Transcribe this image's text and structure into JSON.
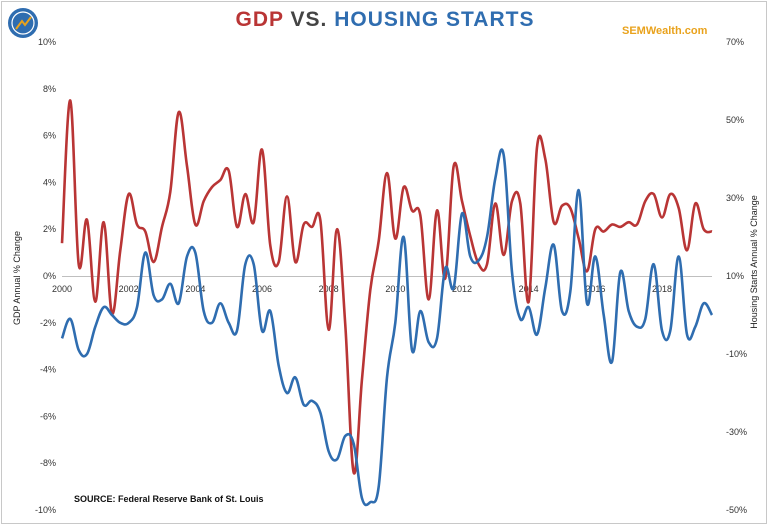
{
  "header": {
    "title_part1": "GDP",
    "title_part2": "VS.",
    "title_part3": "HOUSING STARTS",
    "brand": "SEMWealth.com"
  },
  "colors": {
    "gdp": "#b93535",
    "housing": "#2f6db0",
    "gray": "#444444",
    "brand": "#e9a21c"
  },
  "icons": {
    "logo": "semwealth-logo-icon"
  },
  "source": "SOURCE:  Federal Reserve Bank of St. Louis",
  "chart_data": {
    "type": "line",
    "title": "GDP VS. HOUSING STARTS",
    "xlabel": "",
    "ylabel": "GDP Annual % Change",
    "y2label": "Housing Starts Annual % Change",
    "xlim": [
      2000,
      2019.5
    ],
    "ylim": [
      -10,
      10
    ],
    "y2lim": [
      -50,
      70
    ],
    "x_ticks": [
      "2000",
      "2002",
      "2004",
      "2006",
      "2008",
      "2010",
      "2012",
      "2014",
      "2016",
      "2018"
    ],
    "y_ticks": [
      "10%",
      "8%",
      "6%",
      "4%",
      "2%",
      "0%",
      "-2%",
      "-4%",
      "-6%",
      "-8%",
      "-10%"
    ],
    "y2_ticks": [
      "70%",
      "50%",
      "30%",
      "10%",
      "-10%",
      "-30%",
      "-50%"
    ],
    "grid": false,
    "series": [
      {
        "name": "GDP",
        "axis": "left",
        "points": [
          [
            2000.0,
            1.4
          ],
          [
            2000.25,
            7.5
          ],
          [
            2000.5,
            0.5
          ],
          [
            2000.75,
            2.4
          ],
          [
            2001.0,
            -1.1
          ],
          [
            2001.25,
            2.3
          ],
          [
            2001.5,
            -1.6
          ],
          [
            2001.75,
            1.1
          ],
          [
            2002.0,
            3.5
          ],
          [
            2002.25,
            2.2
          ],
          [
            2002.5,
            1.9
          ],
          [
            2002.75,
            0.6
          ],
          [
            2003.0,
            2.1
          ],
          [
            2003.25,
            3.6
          ],
          [
            2003.5,
            7.0
          ],
          [
            2003.75,
            4.7
          ],
          [
            2004.0,
            2.2
          ],
          [
            2004.25,
            3.2
          ],
          [
            2004.5,
            3.8
          ],
          [
            2004.75,
            4.1
          ],
          [
            2005.0,
            4.5
          ],
          [
            2005.25,
            2.1
          ],
          [
            2005.5,
            3.5
          ],
          [
            2005.75,
            2.3
          ],
          [
            2006.0,
            5.4
          ],
          [
            2006.25,
            1.3
          ],
          [
            2006.5,
            0.6
          ],
          [
            2006.75,
            3.4
          ],
          [
            2007.0,
            0.6
          ],
          [
            2007.25,
            2.2
          ],
          [
            2007.5,
            2.1
          ],
          [
            2007.75,
            2.4
          ],
          [
            2008.0,
            -2.3
          ],
          [
            2008.25,
            2.0
          ],
          [
            2008.5,
            -2.1
          ],
          [
            2008.75,
            -8.4
          ],
          [
            2009.0,
            -4.4
          ],
          [
            2009.25,
            -0.6
          ],
          [
            2009.5,
            1.5
          ],
          [
            2009.75,
            4.4
          ],
          [
            2010.0,
            1.6
          ],
          [
            2010.25,
            3.8
          ],
          [
            2010.5,
            2.8
          ],
          [
            2010.75,
            2.6
          ],
          [
            2011.0,
            -1.0
          ],
          [
            2011.25,
            2.8
          ],
          [
            2011.5,
            -0.1
          ],
          [
            2011.75,
            4.7
          ],
          [
            2012.0,
            3.2
          ],
          [
            2012.25,
            1.7
          ],
          [
            2012.5,
            0.5
          ],
          [
            2012.75,
            0.5
          ],
          [
            2013.0,
            3.1
          ],
          [
            2013.25,
            0.9
          ],
          [
            2013.5,
            3.2
          ],
          [
            2013.75,
            3.1
          ],
          [
            2014.0,
            -1.1
          ],
          [
            2014.25,
            5.5
          ],
          [
            2014.5,
            5.0
          ],
          [
            2014.75,
            2.3
          ],
          [
            2015.0,
            3.0
          ],
          [
            2015.25,
            2.9
          ],
          [
            2015.5,
            1.6
          ],
          [
            2015.75,
            0.2
          ],
          [
            2016.0,
            2.0
          ],
          [
            2016.25,
            1.9
          ],
          [
            2016.5,
            2.2
          ],
          [
            2016.75,
            2.1
          ],
          [
            2017.0,
            2.3
          ],
          [
            2017.25,
            2.2
          ],
          [
            2017.5,
            3.2
          ],
          [
            2017.75,
            3.5
          ],
          [
            2018.0,
            2.5
          ],
          [
            2018.25,
            3.5
          ],
          [
            2018.5,
            2.9
          ],
          [
            2018.75,
            1.1
          ],
          [
            2019.0,
            3.1
          ],
          [
            2019.25,
            2.0
          ],
          [
            2019.5,
            1.9
          ],
          [
            2019.75,
            1.9
          ]
        ]
      },
      {
        "name": "Housing Starts",
        "axis": "right",
        "points": [
          [
            2000.0,
            -6
          ],
          [
            2000.25,
            -1
          ],
          [
            2000.5,
            -9
          ],
          [
            2000.75,
            -10
          ],
          [
            2001.0,
            -3
          ],
          [
            2001.25,
            2
          ],
          [
            2001.5,
            0
          ],
          [
            2001.75,
            -2
          ],
          [
            2002.0,
            -2
          ],
          [
            2002.25,
            2
          ],
          [
            2002.5,
            16
          ],
          [
            2002.75,
            5
          ],
          [
            2003.0,
            4
          ],
          [
            2003.25,
            8
          ],
          [
            2003.5,
            3
          ],
          [
            2003.75,
            15
          ],
          [
            2004.0,
            16
          ],
          [
            2004.25,
            1
          ],
          [
            2004.5,
            -2
          ],
          [
            2004.75,
            3
          ],
          [
            2005.0,
            -2
          ],
          [
            2005.25,
            -4
          ],
          [
            2005.5,
            13
          ],
          [
            2005.75,
            13
          ],
          [
            2006.0,
            -4
          ],
          [
            2006.25,
            1
          ],
          [
            2006.5,
            -13
          ],
          [
            2006.75,
            -20
          ],
          [
            2007.0,
            -16
          ],
          [
            2007.25,
            -23
          ],
          [
            2007.5,
            -22
          ],
          [
            2007.75,
            -25
          ],
          [
            2008.0,
            -35
          ],
          [
            2008.25,
            -37
          ],
          [
            2008.5,
            -31
          ],
          [
            2008.75,
            -33
          ],
          [
            2009.0,
            -47
          ],
          [
            2009.25,
            -48
          ],
          [
            2009.5,
            -44
          ],
          [
            2009.75,
            -16
          ],
          [
            2010.0,
            -2
          ],
          [
            2010.25,
            20
          ],
          [
            2010.5,
            -9
          ],
          [
            2010.75,
            1
          ],
          [
            2011.0,
            -7
          ],
          [
            2011.25,
            -6
          ],
          [
            2011.5,
            12
          ],
          [
            2011.75,
            7
          ],
          [
            2012.0,
            26
          ],
          [
            2012.25,
            15
          ],
          [
            2012.5,
            14
          ],
          [
            2012.75,
            20
          ],
          [
            2013.0,
            35
          ],
          [
            2013.25,
            41
          ],
          [
            2013.5,
            11
          ],
          [
            2013.75,
            -1
          ],
          [
            2014.0,
            2
          ],
          [
            2014.25,
            -5
          ],
          [
            2014.5,
            7
          ],
          [
            2014.75,
            18
          ],
          [
            2015.0,
            1
          ],
          [
            2015.25,
            6
          ],
          [
            2015.5,
            32
          ],
          [
            2015.75,
            3
          ],
          [
            2016.0,
            15
          ],
          [
            2016.25,
            0
          ],
          [
            2016.5,
            -12
          ],
          [
            2016.75,
            11
          ],
          [
            2017.0,
            1
          ],
          [
            2017.25,
            -3
          ],
          [
            2017.5,
            -1
          ],
          [
            2017.75,
            13
          ],
          [
            2018.0,
            -4
          ],
          [
            2018.25,
            -4
          ],
          [
            2018.5,
            15
          ],
          [
            2018.75,
            -5
          ],
          [
            2019.0,
            -3
          ],
          [
            2019.25,
            3
          ],
          [
            2019.5,
            0
          ],
          [
            2019.75,
            2
          ]
        ]
      }
    ]
  }
}
